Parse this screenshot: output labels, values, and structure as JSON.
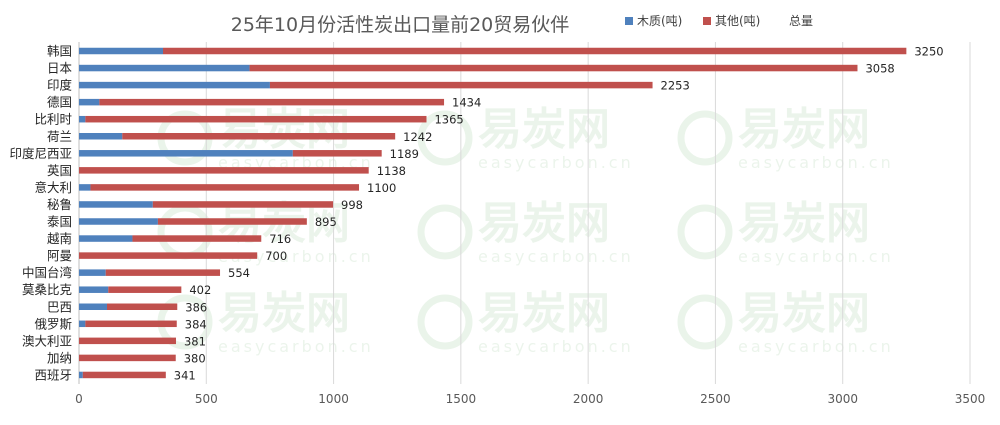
{
  "chart_data": {
    "type": "bar",
    "orientation": "horizontal",
    "stacked": true,
    "title": "25年10月份活性炭出口量前20贸易伙伴",
    "categories": [
      "韩国",
      "日本",
      "印度",
      "德国",
      "比利时",
      "荷兰",
      "印度尼西亚",
      "英国",
      "意大利",
      "秘鲁",
      "泰国",
      "越南",
      "阿曼",
      "中国台湾",
      "莫桑比克",
      "巴西",
      "俄罗斯",
      "澳大利亚",
      "加纳",
      "西班牙"
    ],
    "series": [
      {
        "name": "木质(吨)",
        "color": "#4f81bd",
        "values": [
          330,
          670,
          750,
          80,
          25,
          170,
          840,
          0,
          45,
          290,
          310,
          210,
          0,
          105,
          115,
          110,
          25,
          0,
          0,
          15
        ]
      },
      {
        "name": "其他(吨)",
        "color": "#c0504d",
        "values": [
          2920,
          2388,
          1503,
          1354,
          1340,
          1072,
          349,
          1138,
          1055,
          708,
          585,
          506,
          700,
          449,
          287,
          276,
          359,
          381,
          380,
          326
        ]
      }
    ],
    "totals_legend": "总量",
    "totals": [
      3250,
      3058,
      2253,
      1434,
      1365,
      1242,
      1189,
      1138,
      1100,
      998,
      895,
      716,
      700,
      554,
      402,
      386,
      384,
      381,
      380,
      341
    ],
    "xlim": [
      0,
      3500
    ],
    "xticks": [
      0,
      500,
      1000,
      1500,
      2000,
      2500,
      3000,
      3500
    ],
    "grid": "vertical",
    "legend_position": "top-right"
  },
  "watermark": {
    "brand": "易炭网",
    "domain": "easycarbon.cn"
  }
}
